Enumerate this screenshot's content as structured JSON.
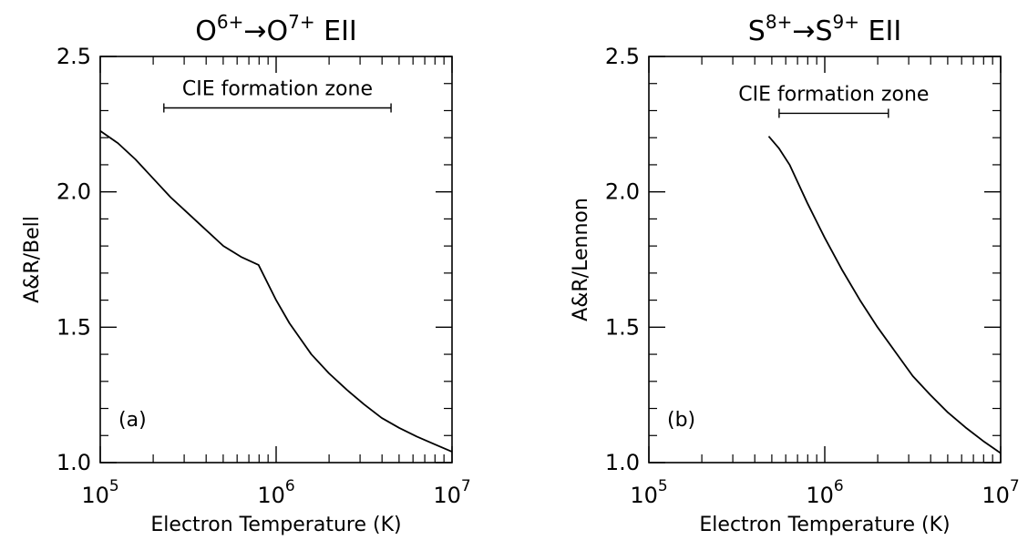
{
  "chart_data": [
    {
      "type": "line",
      "panel_label": "(a)",
      "title": {
        "prefix": "O",
        "from_sup": "6+",
        "arrow": "→",
        "mid": "O",
        "to_sup": "7+",
        "suffix": " EII"
      },
      "xlabel": "Electron Temperature (K)",
      "ylabel": "A&R/Bell",
      "xscale": "log",
      "xlim": [
        100000,
        10000000
      ],
      "ylim": [
        1.0,
        2.5
      ],
      "x_ticks": [
        {
          "base": "10",
          "exp": "5",
          "value": 100000
        },
        {
          "base": "10",
          "exp": "6",
          "value": 1000000
        },
        {
          "base": "10",
          "exp": "7",
          "value": 10000000
        }
      ],
      "y_ticks": [
        {
          "label": "1.0",
          "value": 1.0
        },
        {
          "label": "1.5",
          "value": 1.5
        },
        {
          "label": "2.0",
          "value": 2.0
        },
        {
          "label": "2.5",
          "value": 2.5
        }
      ],
      "annotation": {
        "text": "CIE formation zone",
        "x_range": [
          230000,
          4500000
        ],
        "y": 2.31
      },
      "series": [
        {
          "x": [
            100000,
            125900,
            158500,
            199500,
            251200,
            316200,
            398100,
            501200,
            631000,
            794300,
            1000000,
            1190000,
            1585000,
            1995000,
            2512000,
            3162000,
            3981000,
            5012000,
            6310000,
            7943000,
            10000000
          ],
          "values": [
            2.225,
            2.18,
            2.12,
            2.05,
            1.98,
            1.92,
            1.86,
            1.8,
            1.76,
            1.73,
            1.6,
            1.515,
            1.4,
            1.33,
            1.27,
            1.215,
            1.165,
            1.128,
            1.096,
            1.068,
            1.04
          ]
        }
      ]
    },
    {
      "type": "line",
      "panel_label": "(b)",
      "title": {
        "prefix": "S",
        "from_sup": "8+",
        "arrow": "→",
        "mid": "S",
        "to_sup": "9+",
        "suffix": " EII"
      },
      "xlabel": "Electron Temperature (K)",
      "ylabel": "A&R/Lennon",
      "xscale": "log",
      "xlim": [
        100000,
        10000000
      ],
      "ylim": [
        1.0,
        2.5
      ],
      "x_ticks": [
        {
          "base": "10",
          "exp": "5",
          "value": 100000
        },
        {
          "base": "10",
          "exp": "6",
          "value": 1000000
        },
        {
          "base": "10",
          "exp": "7",
          "value": 10000000
        }
      ],
      "y_ticks": [
        {
          "label": "1.0",
          "value": 1.0
        },
        {
          "label": "1.5",
          "value": 1.5
        },
        {
          "label": "2.0",
          "value": 2.0
        },
        {
          "label": "2.5",
          "value": 2.5
        }
      ],
      "annotation": {
        "text": "CIE formation zone",
        "x_range": [
          550000,
          2300000
        ],
        "y": 2.29
      },
      "series": [
        {
          "x": [
            480000,
            550000,
            631000,
            708000,
            794300,
            891000,
            1000000,
            1259000,
            1585000,
            1995000,
            2512000,
            3162000,
            3981000,
            5012000,
            6310000,
            7943000,
            10000000
          ],
          "values": [
            2.205,
            2.16,
            2.1,
            2.03,
            1.96,
            1.895,
            1.83,
            1.71,
            1.6,
            1.5,
            1.41,
            1.32,
            1.25,
            1.185,
            1.13,
            1.08,
            1.035
          ]
        }
      ]
    }
  ]
}
